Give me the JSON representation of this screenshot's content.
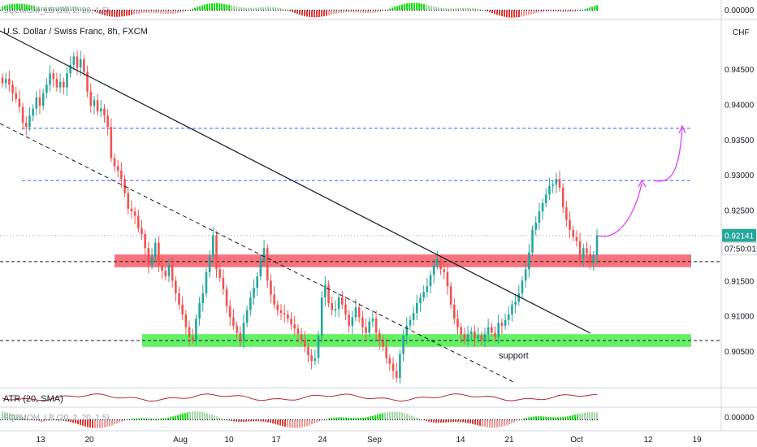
{
  "symbol_title": "U.S. Dollar / Swiss Franc, 8h, FXCM",
  "currency": "CHF",
  "top_indicator_label": "SQZMOM_LB (20, 2, 20, 1.5)",
  "bottom_indicator_label": "SQZMOM_LB (20, 2, 20, 1.5)",
  "atr_label": "ATR (20, SMA)",
  "top_indicator_value": "0.00000",
  "bottom_indicator_value": "0.00000",
  "last_price_label": "0.92141",
  "countdown_label": "07:50:01",
  "support_label": "support",
  "colors": {
    "up": "#26a69a",
    "down": "#ef5350",
    "resistance_zone": "#f23645",
    "support_zone": "#00e600",
    "projection": "#e040fb",
    "level_line": "#2962ff",
    "atr": "#b22833",
    "price_tag": "#26a69a"
  },
  "chart_data": {
    "type": "candlestick",
    "title": "U.S. Dollar / Swiss Franc, 8h, FXCM",
    "price_axis": {
      "unit": "CHF",
      "ticks": [
        "0.94500",
        "0.94000",
        "0.93500",
        "0.93000",
        "0.92500",
        "0.92000",
        "0.91500",
        "0.91000",
        "0.90500"
      ],
      "range": [
        0.9005,
        0.9505
      ]
    },
    "time_axis": {
      "ticks": [
        "13",
        "20",
        "Aug",
        "10",
        "17",
        "24",
        "Sep",
        "14",
        "21",
        "Oct",
        "12",
        "19"
      ]
    },
    "candles_close": [
      0.943,
      0.9436,
      0.9428,
      0.9416,
      0.9408,
      0.9396,
      0.9374,
      0.9368,
      0.9384,
      0.9394,
      0.941,
      0.9398,
      0.9416,
      0.9428,
      0.9444,
      0.9436,
      0.9424,
      0.9432,
      0.9424,
      0.9444,
      0.9456,
      0.9468,
      0.9452,
      0.9464,
      0.9446,
      0.9418,
      0.9398,
      0.9406,
      0.939,
      0.9394,
      0.9384,
      0.9368,
      0.9324,
      0.9312,
      0.9306,
      0.9294,
      0.9274,
      0.9252,
      0.9248,
      0.9242,
      0.9224,
      0.9216,
      0.9196,
      0.9172,
      0.9184,
      0.9204,
      0.9172,
      0.9164,
      0.9156,
      0.9172,
      0.915,
      0.9132,
      0.9116,
      0.9102,
      0.9084,
      0.907,
      0.9066,
      0.9096,
      0.9118,
      0.9132,
      0.9162,
      0.9184,
      0.9214,
      0.9166,
      0.9154,
      0.9138,
      0.9114,
      0.9098,
      0.9086,
      0.9076,
      0.9066,
      0.909,
      0.9108,
      0.9126,
      0.914,
      0.9156,
      0.9178,
      0.9196,
      0.915,
      0.913,
      0.9116,
      0.9108,
      0.9104,
      0.9102,
      0.9096,
      0.9088,
      0.9082,
      0.9074,
      0.9066,
      0.9056,
      0.9044,
      0.9036,
      0.904,
      0.9072,
      0.9126,
      0.9144,
      0.9118,
      0.9108,
      0.911,
      0.9126,
      0.9116,
      0.9102,
      0.9086,
      0.9098,
      0.9112,
      0.9098,
      0.9084,
      0.9076,
      0.9092,
      0.9096,
      0.9076,
      0.9064,
      0.9056,
      0.904,
      0.9032,
      0.9022,
      0.9012,
      0.9046,
      0.9072,
      0.9086,
      0.9094,
      0.9104,
      0.9118,
      0.9126,
      0.9134,
      0.9142,
      0.9158,
      0.9172,
      0.918,
      0.9166,
      0.9162,
      0.9142,
      0.9116,
      0.9096,
      0.9084,
      0.9074,
      0.9066,
      0.9074,
      0.9078,
      0.9068,
      0.9072,
      0.9066,
      0.9074,
      0.9084,
      0.9076,
      0.907,
      0.909,
      0.9086,
      0.9094,
      0.9102,
      0.9116,
      0.912,
      0.9132,
      0.915,
      0.9166,
      0.919,
      0.9222,
      0.9232,
      0.9248,
      0.926,
      0.9272,
      0.9284,
      0.9286,
      0.9294,
      0.9282,
      0.9254,
      0.9236,
      0.9222,
      0.9212,
      0.9206,
      0.9182,
      0.9196,
      0.9188,
      0.9174,
      0.9186,
      0.9214
    ],
    "levels": [
      {
        "price": 0.9366,
        "style": "dashed",
        "color": "#2962ff"
      },
      {
        "price": 0.9292,
        "style": "dashed",
        "color": "#2962ff"
      },
      {
        "price": 0.9177,
        "style": "dashed",
        "color": "#131722"
      },
      {
        "price": 0.9065,
        "style": "dashed",
        "color": "#131722"
      },
      {
        "price": 0.9214,
        "style": "dotted",
        "color": "#787b86"
      }
    ],
    "zones": [
      {
        "name": "resistance",
        "from": 0.9169,
        "to": 0.9187
      },
      {
        "name": "support",
        "from": 0.9056,
        "to": 0.9074
      }
    ],
    "atr_series_shape": "oscillating"
  }
}
